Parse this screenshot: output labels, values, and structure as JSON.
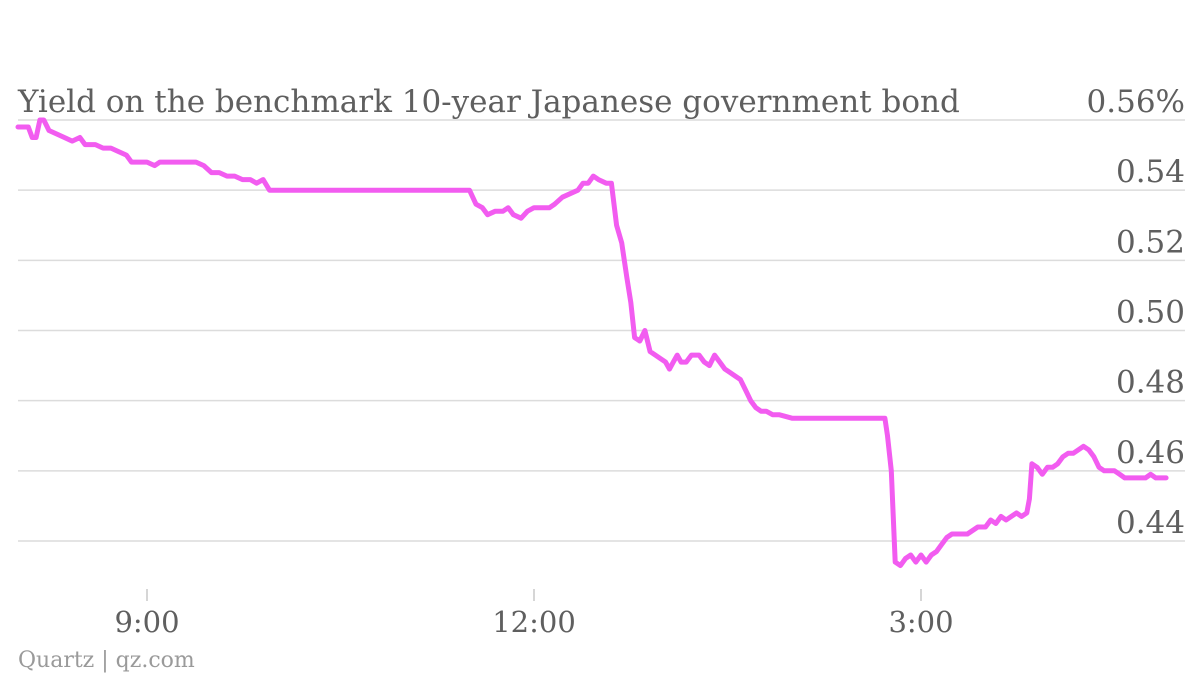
{
  "chart_data": {
    "type": "line",
    "title": "Yield on the benchmark 10-year Japanese government bond",
    "source": "Quartz | qz.com",
    "xlabel": "",
    "ylabel": "",
    "x_range_hours": [
      8.0,
      17.0
    ],
    "ylim": [
      0.432,
      0.562
    ],
    "y_ticks": [
      {
        "value": 0.56,
        "label": "0.56%"
      },
      {
        "value": 0.54,
        "label": "0.54"
      },
      {
        "value": 0.52,
        "label": "0.52"
      },
      {
        "value": 0.5,
        "label": "0.50"
      },
      {
        "value": 0.48,
        "label": "0.48"
      },
      {
        "value": 0.46,
        "label": "0.46"
      },
      {
        "value": 0.44,
        "label": "0.44"
      }
    ],
    "x_ticks": [
      {
        "value": 9.0,
        "label": "9:00"
      },
      {
        "value": 12.0,
        "label": "12:00"
      },
      {
        "value": 15.0,
        "label": "3:00"
      }
    ],
    "grid": true,
    "series": [
      {
        "color": "#f25cf0",
        "points": [
          [
            8.0,
            0.558
          ],
          [
            8.08,
            0.558
          ],
          [
            8.11,
            0.555
          ],
          [
            8.14,
            0.555
          ],
          [
            8.17,
            0.56
          ],
          [
            8.2,
            0.56
          ],
          [
            8.24,
            0.557
          ],
          [
            8.3,
            0.556
          ],
          [
            8.36,
            0.555
          ],
          [
            8.42,
            0.554
          ],
          [
            8.48,
            0.555
          ],
          [
            8.52,
            0.553
          ],
          [
            8.6,
            0.553
          ],
          [
            8.66,
            0.552
          ],
          [
            8.72,
            0.552
          ],
          [
            8.78,
            0.551
          ],
          [
            8.84,
            0.55
          ],
          [
            8.88,
            0.548
          ],
          [
            8.94,
            0.548
          ],
          [
            9.0,
            0.548
          ],
          [
            9.06,
            0.547
          ],
          [
            9.1,
            0.548
          ],
          [
            9.2,
            0.548
          ],
          [
            9.3,
            0.548
          ],
          [
            9.38,
            0.548
          ],
          [
            9.44,
            0.547
          ],
          [
            9.5,
            0.545
          ],
          [
            9.56,
            0.545
          ],
          [
            9.62,
            0.544
          ],
          [
            9.68,
            0.544
          ],
          [
            9.74,
            0.543
          ],
          [
            9.8,
            0.543
          ],
          [
            9.85,
            0.542
          ],
          [
            9.9,
            0.543
          ],
          [
            9.95,
            0.54
          ],
          [
            10.0,
            0.54
          ],
          [
            10.5,
            0.54
          ],
          [
            11.0,
            0.54
          ],
          [
            11.5,
            0.54
          ],
          [
            11.55,
            0.536
          ],
          [
            11.6,
            0.535
          ],
          [
            11.64,
            0.533
          ],
          [
            11.7,
            0.534
          ],
          [
            11.76,
            0.534
          ],
          [
            11.8,
            0.535
          ],
          [
            11.84,
            0.533
          ],
          [
            11.9,
            0.532
          ],
          [
            11.95,
            0.534
          ],
          [
            12.0,
            0.535
          ],
          [
            12.06,
            0.535
          ],
          [
            12.12,
            0.535
          ],
          [
            12.16,
            0.536
          ],
          [
            12.22,
            0.538
          ],
          [
            12.28,
            0.539
          ],
          [
            12.34,
            0.54
          ],
          [
            12.38,
            0.542
          ],
          [
            12.42,
            0.542
          ],
          [
            12.46,
            0.544
          ],
          [
            12.5,
            0.543
          ],
          [
            12.56,
            0.542
          ],
          [
            12.6,
            0.542
          ],
          [
            12.64,
            0.53
          ],
          [
            12.68,
            0.525
          ],
          [
            12.72,
            0.515
          ],
          [
            12.75,
            0.508
          ],
          [
            12.78,
            0.498
          ],
          [
            12.82,
            0.497
          ],
          [
            12.86,
            0.5
          ],
          [
            12.9,
            0.494
          ],
          [
            12.94,
            0.493
          ],
          [
            12.98,
            0.492
          ],
          [
            13.02,
            0.491
          ],
          [
            13.05,
            0.489
          ],
          [
            13.08,
            0.491
          ],
          [
            13.11,
            0.493
          ],
          [
            13.14,
            0.491
          ],
          [
            13.18,
            0.491
          ],
          [
            13.22,
            0.493
          ],
          [
            13.28,
            0.493
          ],
          [
            13.32,
            0.491
          ],
          [
            13.36,
            0.49
          ],
          [
            13.4,
            0.493
          ],
          [
            13.44,
            0.491
          ],
          [
            13.48,
            0.489
          ],
          [
            13.52,
            0.488
          ],
          [
            13.56,
            0.487
          ],
          [
            13.6,
            0.486
          ],
          [
            13.64,
            0.483
          ],
          [
            13.68,
            0.48
          ],
          [
            13.72,
            0.478
          ],
          [
            13.76,
            0.477
          ],
          [
            13.8,
            0.477
          ],
          [
            13.85,
            0.476
          ],
          [
            13.9,
            0.476
          ],
          [
            14.0,
            0.475
          ],
          [
            14.5,
            0.475
          ],
          [
            14.72,
            0.475
          ],
          [
            14.74,
            0.47
          ],
          [
            14.77,
            0.46
          ],
          [
            14.8,
            0.434
          ],
          [
            14.84,
            0.433
          ],
          [
            14.88,
            0.435
          ],
          [
            14.92,
            0.436
          ],
          [
            14.96,
            0.434
          ],
          [
            15.0,
            0.436
          ],
          [
            15.04,
            0.434
          ],
          [
            15.08,
            0.436
          ],
          [
            15.12,
            0.437
          ],
          [
            15.16,
            0.439
          ],
          [
            15.18,
            0.44
          ],
          [
            15.2,
            0.441
          ],
          [
            15.24,
            0.442
          ],
          [
            15.3,
            0.442
          ],
          [
            15.36,
            0.442
          ],
          [
            15.4,
            0.443
          ],
          [
            15.44,
            0.444
          ],
          [
            15.5,
            0.444
          ],
          [
            15.54,
            0.446
          ],
          [
            15.58,
            0.445
          ],
          [
            15.62,
            0.447
          ],
          [
            15.66,
            0.446
          ],
          [
            15.7,
            0.447
          ],
          [
            15.74,
            0.448
          ],
          [
            15.78,
            0.447
          ],
          [
            15.82,
            0.448
          ],
          [
            15.84,
            0.452
          ],
          [
            15.86,
            0.462
          ],
          [
            15.9,
            0.461
          ],
          [
            15.94,
            0.459
          ],
          [
            15.98,
            0.461
          ],
          [
            16.02,
            0.461
          ],
          [
            16.06,
            0.462
          ],
          [
            16.1,
            0.464
          ],
          [
            16.14,
            0.465
          ],
          [
            16.18,
            0.465
          ],
          [
            16.22,
            0.466
          ],
          [
            16.26,
            0.467
          ],
          [
            16.3,
            0.466
          ],
          [
            16.34,
            0.464
          ],
          [
            16.38,
            0.461
          ],
          [
            16.42,
            0.46
          ],
          [
            16.46,
            0.46
          ],
          [
            16.5,
            0.46
          ],
          [
            16.54,
            0.459
          ],
          [
            16.58,
            0.458
          ],
          [
            16.62,
            0.458
          ],
          [
            16.66,
            0.458
          ],
          [
            16.7,
            0.458
          ],
          [
            16.74,
            0.458
          ],
          [
            16.78,
            0.459
          ],
          [
            16.82,
            0.458
          ],
          [
            16.86,
            0.458
          ],
          [
            16.9,
            0.458
          ]
        ]
      }
    ]
  }
}
